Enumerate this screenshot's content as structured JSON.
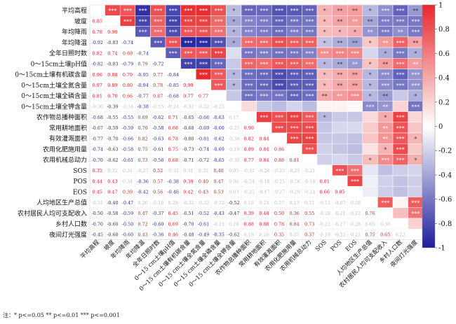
{
  "chart_data": {
    "type": "heatmap",
    "variables": [
      "平均高程",
      "坡度",
      "年均降雨",
      "年均降温",
      "全年日照时数",
      "0～15cm土壤pH值",
      "0～15cm土壤有机碳含量",
      "0～15cm土壤全氮含量",
      "0～15cm土壤全磷含量",
      "0～15cm土壤全钾含量",
      "农作物总播种面积",
      "常用耕地面积",
      "有效灌溉面积",
      "农用化肥施用量",
      "农用机械总动力",
      "SOS",
      "POS",
      "EOS",
      "人均地区生产总值",
      "农村居民人均可支配收入",
      "乡村人口数",
      "夜间灯光强度"
    ],
    "x_tick_labels": [
      "平均高程",
      "坡度",
      "年均降雨",
      "年均降温",
      "全年日照时数",
      "0～15 cm土壤pH值",
      "0～15 cm土壤有机碳含量",
      "0～15 cm土壤全氮含量",
      "0～15 cm土壤全磷含量",
      "0～15 cm土壤全钾含量",
      "农作物总播种面积",
      "常用耕地面积",
      "有效灌溉面积",
      "农用化肥施用量",
      "农用机械总动力",
      "SOS",
      "POS",
      "EOS",
      "人均地区生产总值",
      "农村居民人均可支配收入",
      "乡村人口数",
      "夜间灯光强度"
    ],
    "lower_triangle_values": [
      [],
      [
        0.85
      ],
      [
        0.78,
        0.9
      ],
      [
        -0.92,
        -0.83,
        -0.74
      ],
      [
        0.82,
        0.74,
        0.69,
        -0.74
      ],
      [
        -0.82,
        -0.83,
        -0.79,
        0.79,
        -0.72
      ],
      [
        0.96,
        0.88,
        0.79,
        -0.95,
        0.77,
        -0.84
      ],
      [
        0.97,
        0.89,
        0.8,
        -0.94,
        0.78,
        -0.85,
        0.99
      ],
      [
        0.81,
        0.7,
        0.66,
        -0.77,
        0.87,
        -0.68,
        0.77,
        0.77
      ],
      [
        -0.3,
        -0.39,
        -0.34,
        -0.38,
        -0.15,
        -0.24,
        -0.32,
        -0.32,
        -0.25
      ],
      [
        -0.68,
        -0.55,
        -0.55,
        0.69,
        -0.62,
        0.71,
        -0.65,
        -0.66,
        -0.63,
        0.17
      ],
      [
        -0.67,
        -0.59,
        -0.59,
        0.7,
        -0.58,
        0.68,
        -0.68,
        -0.69,
        -0.6,
        -0.25,
        0.9
      ],
      [
        -0.77,
        -0.7,
        -0.66,
        0.82,
        -0.63,
        0.78,
        -0.8,
        -0.81,
        -0.62,
        -0.3,
        0.82,
        0.84
      ],
      [
        -0.74,
        -0.63,
        -0.58,
        0.75,
        -0.61,
        0.75,
        -0.73,
        -0.74,
        -0.69,
        -0.19,
        0.89,
        0.84,
        0.86
      ],
      [
        -0.7,
        -0.62,
        -0.61,
        0.73,
        -0.56,
        0.68,
        -0.71,
        -0.72,
        -0.65,
        -0.3,
        0.77,
        0.84,
        0.88,
        0.81
      ],
      [
        0.35,
        0.32,
        0.31,
        -0.27,
        0.52,
        -0.32,
        0.31,
        0.32,
        0.4,
        0.05,
        -0.31,
        -0.26,
        -0.25,
        -0.21,
        -0.21
      ],
      [
        0.44,
        0.43,
        0.34,
        -0.36,
        0.57,
        -0.38,
        0.39,
        0.4,
        0.47,
        0.06,
        -0.24,
        -0.18,
        -0.25,
        -0.26,
        -0.18,
        0.81
      ],
      [
        0.45,
        0.47,
        0.39,
        -0.42,
        0.56,
        -0.46,
        0.42,
        0.43,
        0.53,
        0.03,
        -0.25,
        -0.17,
        -0.27,
        -0.29,
        -0.24,
        0.66,
        0.85
      ],
      [
        -0.31,
        -0.4,
        -0.47,
        0.26,
        -0.18,
        0.28,
        -0.32,
        -0.32,
        -0.32,
        -0.52,
        0.18,
        0.24,
        0.27,
        0.13,
        0.31,
        -0.11,
        -0.07,
        -0.08
      ],
      [
        -0.5,
        -0.58,
        -0.59,
        0.47,
        -0.37,
        0.45,
        -0.51,
        -0.52,
        -0.43,
        -0.47,
        0.39,
        0.48,
        0.5,
        0.36,
        0.55,
        -0.28,
        -0.21,
        -0.22,
        0.76
      ],
      [
        -0.7,
        -0.6,
        -0.5,
        0.72,
        -0.6,
        0.69,
        -0.7,
        -0.61,
        -0.24,
        0.2,
        0.88,
        0.8,
        0.78,
        0.84,
        0.73,
        -0.22,
        -0.27,
        -0.28,
        0.05,
        0.3
      ],
      [
        -0.45,
        -0.6,
        -0.6,
        0.43,
        -0.36,
        0.46,
        -0.48,
        -0.49,
        -0.35,
        -0.62,
        0.19,
        0.26,
        0.35,
        0.25,
        0.37,
        -0.19,
        -0.22,
        -0.21,
        0.75,
        0.65,
        0.22
      ]
    ],
    "upper_triangle_significance": [
      [
        null,
        "***",
        "***",
        "***",
        "***",
        "***",
        "***",
        "***",
        "***",
        "*",
        "***",
        "***",
        "***",
        "***",
        "***",
        "*",
        "**",
        "**",
        "*",
        "***",
        "***",
        "**"
      ],
      [
        null,
        null,
        "***",
        "***",
        "***",
        "***",
        "***",
        "***",
        "***",
        "*",
        "***",
        "***",
        "***",
        "***",
        "***",
        "*",
        "**",
        "**",
        "**",
        "***",
        "***",
        "***"
      ],
      [
        null,
        null,
        null,
        "***",
        "***",
        "***",
        "***",
        "***",
        "***",
        "*",
        "***",
        "***",
        "***",
        "***",
        "***",
        "*",
        "*",
        "*",
        "**",
        "***",
        "**",
        "***"
      ],
      [
        null,
        null,
        null,
        null,
        "***",
        "***",
        "***",
        "***",
        "***",
        "*",
        "***",
        "***",
        "***",
        "***",
        "***",
        "*",
        "**",
        "**",
        "*",
        "**",
        "***",
        "**"
      ],
      [
        null,
        null,
        null,
        null,
        null,
        "***",
        "***",
        "***",
        "***",
        "",
        "***",
        "***",
        "***",
        "***",
        "***",
        "***",
        "***",
        "***",
        "",
        "*",
        "***",
        "*"
      ],
      [
        null,
        null,
        null,
        null,
        null,
        null,
        "***",
        "***",
        "***",
        "",
        "***",
        "***",
        "***",
        "***",
        "***",
        "*",
        "**",
        "**",
        "*",
        "**",
        "***",
        "**"
      ],
      [
        null,
        null,
        null,
        null,
        null,
        null,
        null,
        "***",
        "***",
        "*",
        "***",
        "***",
        "***",
        "***",
        "***",
        "*",
        "**",
        "**",
        "*",
        "***",
        "***",
        "***"
      ],
      [
        null,
        null,
        null,
        null,
        null,
        null,
        null,
        null,
        "***",
        "*",
        "***",
        "***",
        "***",
        "***",
        "***",
        "*",
        "**",
        "**",
        "*",
        "***",
        "***",
        "***"
      ],
      [
        null,
        null,
        null,
        null,
        null,
        null,
        null,
        null,
        null,
        "",
        "***",
        "***",
        "***",
        "***",
        "***",
        "**",
        "**",
        "***",
        "*",
        "**",
        "",
        "*"
      ],
      [
        null,
        null,
        null,
        null,
        null,
        null,
        null,
        null,
        null,
        null,
        "",
        "",
        "",
        "",
        "",
        "",
        "",
        "",
        "***",
        "**",
        "",
        "***"
      ],
      [
        null,
        null,
        null,
        null,
        null,
        null,
        null,
        null,
        null,
        null,
        null,
        "***",
        "***",
        "***",
        "***",
        "*",
        "",
        "",
        "",
        "*",
        "***",
        ""
      ],
      [
        null,
        null,
        null,
        null,
        null,
        null,
        null,
        null,
        null,
        null,
        null,
        null,
        "***",
        "***",
        "***",
        "",
        "",
        "",
        "",
        "**",
        "***",
        ""
      ],
      [
        null,
        null,
        null,
        null,
        null,
        null,
        null,
        null,
        null,
        null,
        null,
        null,
        null,
        "***",
        "***",
        "",
        "",
        "",
        "",
        "**",
        "***",
        "*"
      ],
      [
        null,
        null,
        null,
        null,
        null,
        null,
        null,
        null,
        null,
        null,
        null,
        null,
        null,
        null,
        "***",
        "",
        "",
        "",
        "",
        "*",
        "***",
        ""
      ],
      [
        null,
        null,
        null,
        null,
        null,
        null,
        null,
        null,
        null,
        null,
        null,
        null,
        null,
        null,
        null,
        "",
        "",
        "",
        "*",
        "***",
        "***",
        "*"
      ],
      [
        null,
        null,
        null,
        null,
        null,
        null,
        null,
        null,
        null,
        null,
        null,
        null,
        null,
        null,
        null,
        null,
        "***",
        "***",
        "",
        "",
        "",
        ""
      ],
      [
        null,
        null,
        null,
        null,
        null,
        null,
        null,
        null,
        null,
        null,
        null,
        null,
        null,
        null,
        null,
        null,
        null,
        "***",
        "",
        "",
        "",
        ""
      ],
      [
        null,
        null,
        null,
        null,
        null,
        null,
        null,
        null,
        null,
        null,
        null,
        null,
        null,
        null,
        null,
        null,
        null,
        null,
        "",
        "",
        "",
        ""
      ],
      [
        null,
        null,
        null,
        null,
        null,
        null,
        null,
        null,
        null,
        null,
        null,
        null,
        null,
        null,
        null,
        null,
        null,
        null,
        null,
        "***",
        "",
        "***"
      ],
      [
        null,
        null,
        null,
        null,
        null,
        null,
        null,
        null,
        null,
        null,
        null,
        null,
        null,
        null,
        null,
        null,
        null,
        null,
        null,
        null,
        "",
        "***"
      ],
      [
        null,
        null,
        null,
        null,
        null,
        null,
        null,
        null,
        null,
        null,
        null,
        null,
        null,
        null,
        null,
        null,
        null,
        null,
        null,
        null,
        null,
        ""
      ],
      [
        null,
        null,
        null,
        null,
        null,
        null,
        null,
        null,
        null,
        null,
        null,
        null,
        null,
        null,
        null,
        null,
        null,
        null,
        null,
        null,
        null,
        null
      ]
    ],
    "colorbar": {
      "min": -1,
      "max": 1,
      "ticks": [
        "1",
        "0.8",
        "0.6",
        "0.4",
        "0.2",
        "0",
        "-0.2",
        "-0.4",
        "-0.6",
        "-0.8",
        "-1"
      ]
    },
    "colors": {
      "positive": "#e8282b",
      "negative": "#1e1e9c",
      "neutral": "#ffffff"
    },
    "legend_position": "right",
    "note": "注：* p<=0.05 ** p<=0.01 *** p<=0.001"
  }
}
